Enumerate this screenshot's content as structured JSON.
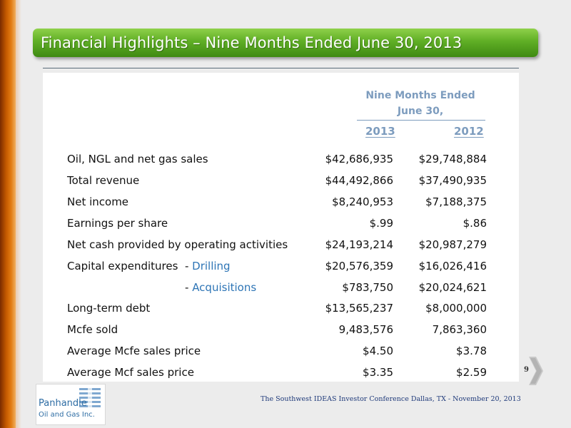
{
  "title": "Financial Highlights – Nine Months Ended June 30, 2013",
  "table": {
    "header_line1": "Nine Months Ended",
    "header_line2": "June 30,",
    "year1": "2013",
    "year2": "2012",
    "rows": [
      {
        "label": "Oil, NGL and net gas sales",
        "v2013": "$42,686,935",
        "v2012": "$29,748,884"
      },
      {
        "label": "Total revenue",
        "v2013": "$44,492,866",
        "v2012": "$37,490,935"
      },
      {
        "label": "Net income",
        "v2013": "$8,240,953",
        "v2012": "$7,188,375"
      },
      {
        "label": "Earnings per share",
        "v2013": "$.99",
        "v2012": "$.86"
      },
      {
        "label": "Net cash provided by operating activities",
        "v2013": "$24,193,214",
        "v2012": "$20,987,279"
      },
      {
        "label": "Capital expenditures  - ",
        "sublabel": "Drilling",
        "v2013": "$20,576,359",
        "v2012": "$16,026,416"
      },
      {
        "label": "- ",
        "sublabel": "Acquisitions",
        "v2013": "$783,750",
        "v2012": "$20,024,621"
      },
      {
        "label": "Long-term debt",
        "v2013": "$13,565,237",
        "v2012": "$8,000,000"
      },
      {
        "label": "Mcfe sold",
        "v2013": "9,483,576",
        "v2012": "7,863,360"
      },
      {
        "label": "Average Mcfe sales price",
        "v2013": "$4.50",
        "v2012": "$3.78"
      },
      {
        "label": "Average Mcf sales price",
        "v2013": "$3.35",
        "v2012": "$2.59"
      }
    ]
  },
  "page_number": "9",
  "footer": "The Southwest  IDEAS Investor Conference Dallas, TX - November 20, 2013",
  "logo": {
    "line1": "Panhandle",
    "line2": "Oil and Gas Inc."
  },
  "icons": {
    "next": "chevron-right-icon"
  },
  "colors": {
    "title_green": "#5fae25",
    "header_blue": "#7d9cbe",
    "accent_orange": "#c55a00",
    "link_blue": "#2e75b6"
  }
}
